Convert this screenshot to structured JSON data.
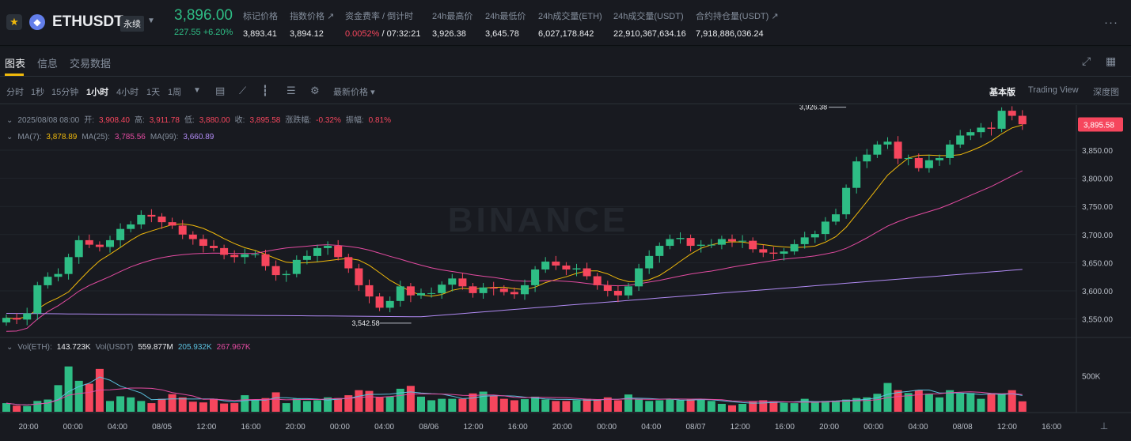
{
  "header": {
    "symbol": "ETHUSDT",
    "contract_type": "永续",
    "last_price": "3,896.00",
    "change": "227.55 +6.20%",
    "stats": [
      {
        "label": "标记价格",
        "value": "3,893.41"
      },
      {
        "label": "指数价格 ↗",
        "value": "3,894.12"
      },
      {
        "label": "资金费率 / 倒计时",
        "value_rate": "0.0052%",
        "value_countdown": "/ 07:32:21"
      },
      {
        "label": "24h最高价",
        "value": "3,926.38"
      },
      {
        "label": "24h最低价",
        "value": "3,645.78"
      },
      {
        "label": "24h成交量(ETH)",
        "value": "6,027,178.842"
      },
      {
        "label": "24h成交量(USDT)",
        "value": "22,910,367,634.16"
      },
      {
        "label": "合约持仓量(USDT) ↗",
        "value": "7,918,886,036.24"
      }
    ],
    "more_icon": "···"
  },
  "tabs": [
    "图表",
    "信息",
    "交易数据"
  ],
  "toolbar": {
    "timeframes": [
      "分时",
      "1秒",
      "15分钟",
      "1小时",
      "4小时",
      "1天",
      "1周"
    ],
    "active_timeframe": "1小时",
    "price_type": "最新价格",
    "views": [
      "基本版",
      "Trading View",
      "深度图"
    ],
    "active_view": "基本版"
  },
  "candle_info": {
    "time": "2025/08/08 08:00",
    "open_label": "开:",
    "open": "3,908.40",
    "high_label": "高:",
    "high": "3,911.78",
    "low_label": "低:",
    "low": "3,880.00",
    "close_label": "收:",
    "close": "3,895.58",
    "chg_label": "涨跌幅:",
    "chg": "-0.32%",
    "amp_label": "振幅:",
    "amp": "0.81%"
  },
  "ma_info": {
    "ma7_label": "MA(7):",
    "ma7": "3,878.89",
    "ma25_label": "MA(25):",
    "ma25": "3,785.56",
    "ma99_label": "MA(99):",
    "ma99": "3,660.89"
  },
  "vol_info": {
    "eth_label": "Vol(ETH):",
    "eth": "143.723K",
    "usdt_label": "Vol(USDT)",
    "usdt": "559.877M",
    "ma1": "205.932K",
    "ma2": "267.967K"
  },
  "watermark": "BINANCE",
  "colors": {
    "up": "#2ebd85",
    "down": "#f6465d",
    "ma7": "#f0b90b",
    "ma25": "#e34ba1",
    "ma99": "#b18bf4",
    "volma1": "#5bc0de",
    "volma2": "#e34ba1"
  },
  "chart_data": {
    "type": "candlestick",
    "ylim": [
      3520,
      3930
    ],
    "y_ticks": [
      "3,850.00",
      "3,800.00",
      "3,750.00",
      "3,700.00",
      "3,650.00",
      "3,600.00",
      "3,550.00"
    ],
    "y_tick_values": [
      3850,
      3800,
      3750,
      3700,
      3650,
      3600,
      3550
    ],
    "current_price": "3,895.58",
    "current_value": 3895.58,
    "high_marker": {
      "label": "3,926.38",
      "value": 3926.38,
      "index": 81
    },
    "low_marker": {
      "label": "3,542.58",
      "value": 3542.58,
      "index": 36
    },
    "x_labels": [
      "20:00",
      "00:00",
      "04:00",
      "08/05",
      "12:00",
      "16:00",
      "20:00",
      "00:00",
      "04:00",
      "08/06",
      "12:00",
      "16:00",
      "20:00",
      "00:00",
      "04:00",
      "08/07",
      "12:00",
      "16:00",
      "20:00",
      "00:00",
      "04:00",
      "08/08",
      "12:00",
      "16:00"
    ],
    "vol_tick": "500K",
    "vol_tick_value": 500,
    "vol_max": 1000,
    "closes": [
      3552,
      3549,
      3560,
      3610,
      3625,
      3630,
      3660,
      3690,
      3682,
      3678,
      3690,
      3710,
      3718,
      3735,
      3732,
      3722,
      3716,
      3700,
      3692,
      3680,
      3676,
      3664,
      3660,
      3665,
      3665,
      3644,
      3628,
      3630,
      3655,
      3662,
      3676,
      3680,
      3660,
      3640,
      3610,
      3590,
      3570,
      3582,
      3608,
      3592,
      3596,
      3596,
      3611,
      3622,
      3608,
      3596,
      3606,
      3604,
      3598,
      3594,
      3610,
      3638,
      3652,
      3645,
      3638,
      3640,
      3626,
      3610,
      3600,
      3592,
      3608,
      3640,
      3662,
      3680,
      3692,
      3694,
      3680,
      3682,
      3682,
      3692,
      3688,
      3689,
      3674,
      3668,
      3666,
      3670,
      3683,
      3695,
      3701,
      3723,
      3736,
      3783,
      3830,
      3842,
      3860,
      3865,
      3835,
      3836,
      3818,
      3832,
      3836,
      3860,
      3876,
      3882,
      3890,
      3888,
      3920,
      3911,
      3896
    ],
    "volumes": [
      120,
      85,
      80,
      150,
      170,
      370,
      630,
      430,
      390,
      595,
      150,
      215,
      200,
      150,
      120,
      180,
      245,
      200,
      140,
      130,
      180,
      115,
      120,
      230,
      160,
      190,
      270,
      120,
      180,
      150,
      160,
      200,
      190,
      230,
      300,
      290,
      200,
      210,
      320,
      360,
      210,
      160,
      180,
      180,
      180,
      255,
      280,
      220,
      180,
      160,
      175,
      210,
      170,
      150,
      150,
      160,
      180,
      170,
      200,
      160,
      240,
      170,
      150,
      160,
      175,
      160,
      170,
      180,
      150,
      110,
      90,
      110,
      140,
      160,
      145,
      125,
      120,
      180,
      140,
      150,
      155,
      170,
      190,
      200,
      250,
      400,
      300,
      260,
      300,
      250,
      200,
      300,
      255,
      260,
      180,
      250,
      255,
      300,
      145
    ]
  }
}
